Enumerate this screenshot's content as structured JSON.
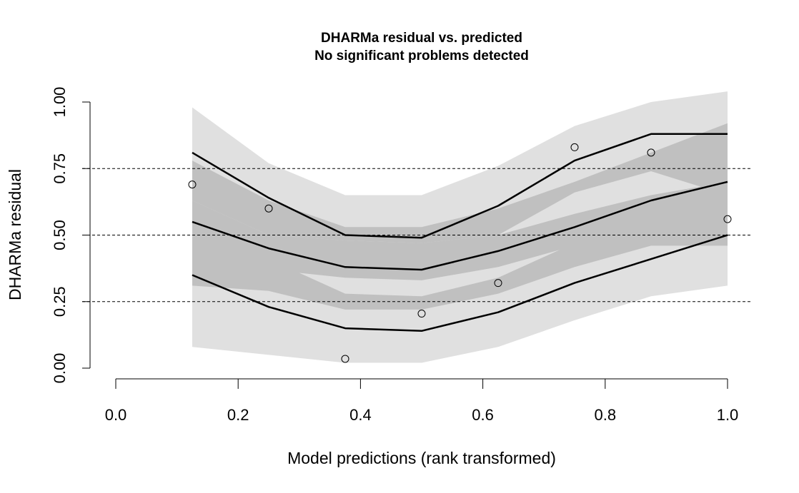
{
  "chart_data": {
    "type": "line",
    "title": "DHARMa residual vs. predicted",
    "subtitle": "No significant problems detected",
    "xlabel": "Model predictions (rank transformed)",
    "ylabel": "DHARMa residual",
    "xlim": [
      0,
      1
    ],
    "ylim": [
      0,
      1
    ],
    "x_ticks": [
      "0.0",
      "0.2",
      "0.4",
      "0.6",
      "0.8",
      "1.0"
    ],
    "y_ticks": [
      "0.00",
      "0.25",
      "0.50",
      "0.75",
      "1.00"
    ],
    "reference_lines": [
      0.25,
      0.5,
      0.75
    ],
    "colors": {
      "outer_band": "#e0e0e0",
      "inner_band": "#c0c0c0",
      "line": "#000000",
      "points": "#000000",
      "reference": "#000000"
    },
    "x": [
      0.125,
      0.25,
      0.375,
      0.5,
      0.625,
      0.75,
      0.875,
      1.0
    ],
    "series": [
      {
        "values": [
          0.81,
          0.64,
          0.5,
          0.49,
          0.61,
          0.78,
          0.88,
          0.88
        ]
      },
      {
        "values": [
          0.55,
          0.45,
          0.38,
          0.37,
          0.44,
          0.53,
          0.63,
          0.7
        ]
      },
      {
        "values": [
          0.35,
          0.23,
          0.15,
          0.14,
          0.21,
          0.32,
          0.41,
          0.5
        ]
      }
    ],
    "outer_bands": [
      {
        "lower": [
          0.62,
          0.49,
          0.34,
          0.36,
          0.45,
          0.66,
          0.74,
          0.64
        ],
        "upper": [
          0.98,
          0.77,
          0.65,
          0.65,
          0.76,
          0.91,
          1.0,
          1.04
        ]
      },
      {
        "lower": [
          0.31,
          0.29,
          0.22,
          0.22,
          0.28,
          0.38,
          0.46,
          0.46
        ],
        "upper": [
          0.78,
          0.63,
          0.53,
          0.53,
          0.6,
          0.7,
          0.81,
          0.92
        ]
      },
      {
        "lower": [
          0.08,
          0.05,
          0.02,
          0.02,
          0.08,
          0.18,
          0.27,
          0.31
        ],
        "upper": [
          0.61,
          0.41,
          0.28,
          0.27,
          0.34,
          0.47,
          0.54,
          0.68
        ]
      }
    ],
    "inner_bands": [
      {
        "lower": [
          0.63,
          0.5,
          0.48,
          0.47,
          0.5,
          0.66,
          0.74,
          0.65
        ],
        "upper": [
          0.78,
          0.63,
          0.53,
          0.53,
          0.6,
          0.7,
          0.81,
          0.92
        ]
      },
      {
        "lower": [
          0.44,
          0.37,
          0.34,
          0.33,
          0.38,
          0.46,
          0.52,
          0.53
        ],
        "upper": [
          0.63,
          0.5,
          0.48,
          0.47,
          0.5,
          0.58,
          0.65,
          0.7
        ]
      },
      {
        "lower": [
          0.31,
          0.29,
          0.22,
          0.22,
          0.28,
          0.38,
          0.46,
          0.46
        ],
        "upper": [
          0.61,
          0.41,
          0.28,
          0.27,
          0.34,
          0.47,
          0.54,
          0.68
        ]
      }
    ],
    "points": [
      {
        "x": 0.125,
        "y": 0.69
      },
      {
        "x": 0.25,
        "y": 0.6
      },
      {
        "x": 0.375,
        "y": 0.035
      },
      {
        "x": 0.5,
        "y": 0.205
      },
      {
        "x": 0.625,
        "y": 0.32
      },
      {
        "x": 0.75,
        "y": 0.83
      },
      {
        "x": 0.875,
        "y": 0.81
      },
      {
        "x": 1.0,
        "y": 0.56
      }
    ]
  }
}
